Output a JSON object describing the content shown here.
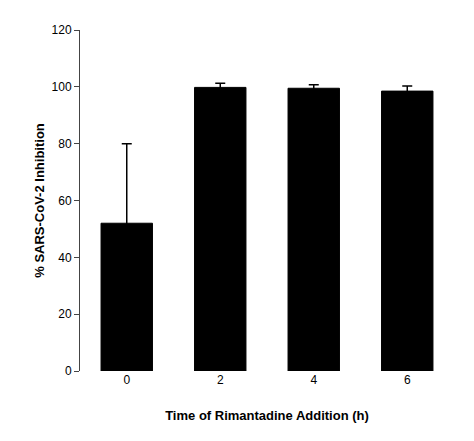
{
  "chart_data": {
    "type": "bar",
    "categories": [
      "0",
      "2",
      "4",
      "6"
    ],
    "values": [
      52.0,
      99.8,
      99.5,
      98.5
    ],
    "errors": [
      28.0,
      1.5,
      1.2,
      1.8
    ],
    "color": "#000000",
    "xlabel": "Time of Rimantadine Addition (h)",
    "ylabel": "% SARS-CoV-2 Inhibition",
    "ylim": [
      0,
      120
    ],
    "yticks": [
      0,
      20,
      40,
      60,
      80,
      100,
      120
    ],
    "grid": false
  }
}
